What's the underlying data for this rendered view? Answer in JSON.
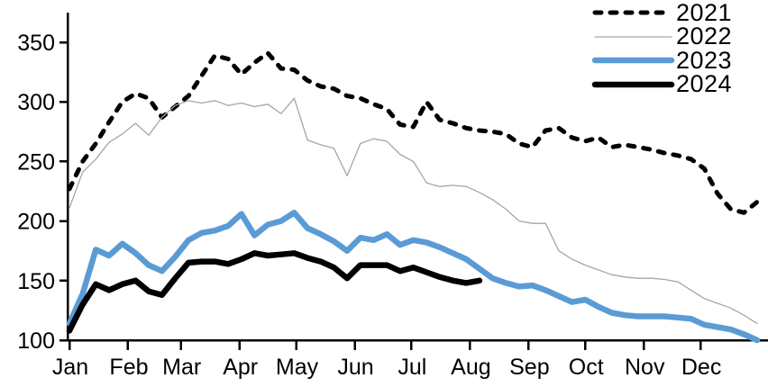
{
  "chart_data": {
    "type": "line",
    "title": "",
    "legend_position": "top-right",
    "grid": false,
    "x_axis": {
      "tick_labels": [
        "Jan",
        "Feb",
        "Mar",
        "Apr",
        "May",
        "Jun",
        "Jul",
        "Aug",
        "Sep",
        "Oct",
        "Nov",
        "Dec"
      ],
      "tick_days": [
        0,
        31,
        59,
        90,
        120,
        151,
        181,
        212,
        243,
        273,
        304,
        334
      ],
      "range_days": [
        0,
        364
      ],
      "points_per_series": "weekly"
    },
    "y_axis": {
      "ticks": [
        100,
        150,
        200,
        250,
        300,
        350
      ],
      "range": [
        100,
        350
      ]
    },
    "colors": {
      "axis": "#000000",
      "blue_accent": "#5B9BD5",
      "gray_line": "#A6A6A6",
      "black_line": "#000000"
    },
    "series": [
      {
        "name": "2021",
        "color": "#000000",
        "style": "dashed",
        "width": 5,
        "values": [
          227,
          250,
          265,
          283,
          300,
          307,
          303,
          287,
          296,
          305,
          322,
          339,
          336,
          323,
          333,
          341,
          328,
          327,
          318,
          313,
          311,
          305,
          303,
          298,
          294,
          281,
          279,
          300,
          285,
          282,
          278,
          276,
          275,
          273,
          265,
          262,
          276,
          278,
          270,
          267,
          270,
          262,
          264,
          262,
          260,
          257,
          255,
          252,
          244,
          223,
          210,
          207,
          216
        ]
      },
      {
        "name": "2022",
        "color": "#A6A6A6",
        "style": "thin",
        "width": 1.3,
        "values": [
          211,
          241,
          252,
          266,
          273,
          282,
          272,
          287,
          297,
          301,
          299,
          301,
          297,
          299,
          296,
          298,
          290,
          303,
          268,
          264,
          261,
          238,
          265,
          269,
          267,
          256,
          250,
          232,
          229,
          230,
          229,
          224,
          218,
          210,
          200,
          198,
          198,
          175,
          168,
          163,
          159,
          155,
          153,
          152,
          152,
          151,
          149,
          142,
          135,
          131,
          127,
          121,
          114
        ]
      },
      {
        "name": "2023",
        "color": "#5B9BD5",
        "style": "solid",
        "width": 6.5,
        "values": [
          114,
          139,
          176,
          171,
          181,
          173,
          163,
          158,
          170,
          184,
          190,
          192,
          196,
          206,
          188,
          197,
          200,
          207,
          194,
          189,
          183,
          175,
          186,
          184,
          189,
          180,
          184,
          182,
          178,
          173,
          168,
          160,
          152,
          148,
          145,
          146,
          142,
          137,
          132,
          134,
          128,
          123,
          121,
          120,
          120,
          120,
          119,
          118,
          113,
          111,
          109,
          105,
          100
        ]
      },
      {
        "name": "2024",
        "color": "#000000",
        "style": "solid",
        "width": 6.5,
        "values": [
          108,
          130,
          147,
          142,
          147,
          150,
          141,
          138,
          152,
          165,
          166,
          166,
          164,
          168,
          173,
          171,
          172,
          173,
          169,
          166,
          161,
          152,
          163,
          163,
          163,
          158,
          161,
          157,
          153,
          150,
          148,
          150
        ]
      }
    ]
  }
}
